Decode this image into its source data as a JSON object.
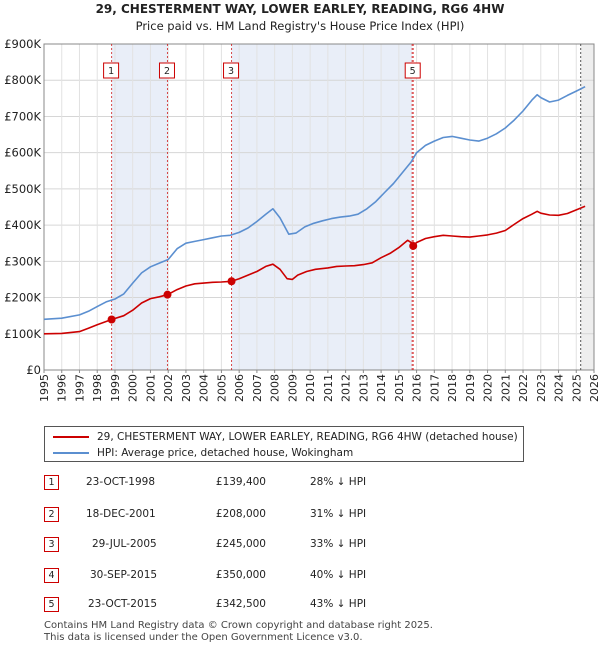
{
  "chart_data": {
    "type": "line",
    "title": "29, CHESTERMENT WAY, LOWER EARLEY, READING, RG6 4HW",
    "subtitle": "Price paid vs. HM Land Registry's House Price Index (HPI)",
    "xlim": [
      1995,
      2026
    ],
    "ylim": [
      0,
      900000
    ],
    "x_ticks": [
      1995,
      1996,
      1997,
      1998,
      1999,
      2000,
      2001,
      2002,
      2003,
      2004,
      2005,
      2006,
      2007,
      2008,
      2009,
      2010,
      2011,
      2012,
      2013,
      2014,
      2015,
      2016,
      2017,
      2018,
      2019,
      2020,
      2021,
      2022,
      2023,
      2024,
      2025,
      2026
    ],
    "x_tick_labels": [
      "1995",
      "1996",
      "1997",
      "1998",
      "1999",
      "2000",
      "2001",
      "2002",
      "2003",
      "2004",
      "2005",
      "2006",
      "2007",
      "2008",
      "2009",
      "2010",
      "2011",
      "2012",
      "2013",
      "2014",
      "2015",
      "2016",
      "2017",
      "2018",
      "2019",
      "2020",
      "2021",
      "2022",
      "2023",
      "2024",
      "2025",
      "2026"
    ],
    "y_ticks": [
      0,
      100000,
      200000,
      300000,
      400000,
      500000,
      600000,
      700000,
      800000,
      900000
    ],
    "y_tick_labels": [
      "£0",
      "£100K",
      "£200K",
      "£300K",
      "£400K",
      "£500K",
      "£600K",
      "£700K",
      "£800K",
      "£900K"
    ],
    "grid": true,
    "series": [
      {
        "name": "29, CHESTERMENT WAY, LOWER EARLEY, READING, RG6 4HW (detached house)",
        "color": "#cc0000",
        "x": [
          1995.0,
          1996.0,
          1997.0,
          1997.5,
          1998.0,
          1998.81,
          1999.5,
          2000.0,
          2000.5,
          2001.0,
          2001.5,
          2001.96,
          2002.5,
          2003.0,
          2003.5,
          2004.0,
          2004.5,
          2005.0,
          2005.57,
          2006.0,
          2006.5,
          2007.0,
          2007.5,
          2007.9,
          2008.3,
          2008.7,
          2009.0,
          2009.3,
          2009.8,
          2010.3,
          2011.0,
          2011.5,
          2012.0,
          2012.5,
          2013.0,
          2013.5,
          2014.0,
          2014.5,
          2015.0,
          2015.5,
          2015.75,
          2015.81,
          2016.0,
          2016.5,
          2017.0,
          2017.5,
          2018.0,
          2018.5,
          2019.0,
          2019.5,
          2020.0,
          2020.5,
          2021.0,
          2021.5,
          2022.0,
          2022.5,
          2022.8,
          2023.0,
          2023.5,
          2024.0,
          2024.5,
          2025.0,
          2025.5
        ],
        "values": [
          100000,
          101000,
          106000,
          115000,
          125000,
          139400,
          150000,
          165000,
          185000,
          197000,
          202000,
          208000,
          222000,
          232000,
          238000,
          240000,
          242000,
          243000,
          245000,
          252000,
          262000,
          272000,
          286000,
          292000,
          278000,
          252000,
          250000,
          262000,
          272000,
          278000,
          282000,
          286000,
          287000,
          288000,
          291000,
          296000,
          310000,
          322000,
          338000,
          358000,
          350000,
          342500,
          352000,
          363000,
          368000,
          372000,
          370000,
          368000,
          367000,
          370000,
          373000,
          378000,
          385000,
          402000,
          418000,
          430000,
          438000,
          433000,
          428000,
          427000,
          432000,
          442000,
          452000
        ]
      },
      {
        "name": "HPI: Average price, detached house, Wokingham",
        "color": "#5b8fd0",
        "x": [
          1995.0,
          1996.0,
          1997.0,
          1997.5,
          1998.0,
          1998.5,
          1999.0,
          1999.5,
          2000.0,
          2000.5,
          2001.0,
          2001.5,
          2002.0,
          2002.5,
          2003.0,
          2003.5,
          2004.0,
          2004.5,
          2005.0,
          2005.5,
          2006.0,
          2006.5,
          2007.0,
          2007.5,
          2007.9,
          2008.3,
          2008.8,
          2009.2,
          2009.7,
          2010.2,
          2010.7,
          2011.2,
          2011.7,
          2012.2,
          2012.7,
          2013.2,
          2013.7,
          2014.2,
          2014.7,
          2015.2,
          2015.7,
          2016.0,
          2016.5,
          2017.0,
          2017.5,
          2018.0,
          2018.5,
          2019.0,
          2019.5,
          2020.0,
          2020.5,
          2021.0,
          2021.5,
          2022.0,
          2022.5,
          2022.8,
          2023.0,
          2023.5,
          2024.0,
          2024.5,
          2025.0,
          2025.5
        ],
        "values": [
          140000,
          143000,
          152000,
          162000,
          175000,
          188000,
          196000,
          210000,
          240000,
          268000,
          285000,
          295000,
          305000,
          335000,
          350000,
          355000,
          360000,
          365000,
          370000,
          372000,
          380000,
          392000,
          410000,
          430000,
          445000,
          420000,
          375000,
          378000,
          395000,
          405000,
          412000,
          418000,
          422000,
          425000,
          430000,
          445000,
          465000,
          490000,
          515000,
          545000,
          575000,
          600000,
          620000,
          632000,
          642000,
          645000,
          640000,
          635000,
          632000,
          640000,
          652000,
          668000,
          690000,
          715000,
          745000,
          760000,
          752000,
          740000,
          745000,
          758000,
          770000,
          782000
        ]
      }
    ],
    "sale_markers": [
      {
        "num": "1",
        "x": 1998.81,
        "y": 139400
      },
      {
        "num": "2",
        "x": 2001.96,
        "y": 208000
      },
      {
        "num": "3",
        "x": 2005.57,
        "y": 245000
      },
      {
        "num": "5",
        "x": 2015.81,
        "y": 342500
      }
    ],
    "event_lines": [
      {
        "num": "1",
        "x": 1998.81
      },
      {
        "num": "2",
        "x": 2001.96
      },
      {
        "num": "3",
        "x": 2005.57
      },
      {
        "num": "4",
        "x": 2015.75
      },
      {
        "num": "5",
        "x": 2015.81
      }
    ],
    "event_boxes": [
      {
        "label": "1",
        "x": 1998.81
      },
      {
        "label": "2",
        "x": 2001.96
      },
      {
        "label": "3",
        "x": 2005.57
      },
      {
        "label": "5",
        "x": 2015.81
      }
    ],
    "projection_start": 2025.25
  },
  "legend": {
    "items": [
      {
        "label": "29, CHESTERMENT WAY, LOWER EARLEY, READING, RG6 4HW (detached house)",
        "color": "#cc0000"
      },
      {
        "label": "HPI: Average price, detached house, Wokingham",
        "color": "#5b8fd0"
      }
    ]
  },
  "sales": [
    {
      "num": "1",
      "date": "23-OCT-1998",
      "price": "£139,400",
      "hpi": "28% ↓ HPI"
    },
    {
      "num": "2",
      "date": "18-DEC-2001",
      "price": "£208,000",
      "hpi": "31% ↓ HPI"
    },
    {
      "num": "3",
      "date": "29-JUL-2005",
      "price": "£245,000",
      "hpi": "33% ↓ HPI"
    },
    {
      "num": "4",
      "date": "30-SEP-2015",
      "price": "£350,000",
      "hpi": "40% ↓ HPI"
    },
    {
      "num": "5",
      "date": "23-OCT-2015",
      "price": "£342,500",
      "hpi": "43% ↓ HPI"
    }
  ],
  "footer": {
    "line1": "Contains HM Land Registry data © Crown copyright and database right 2025.",
    "line2": "This data is licensed under the Open Government Licence v3.0."
  }
}
